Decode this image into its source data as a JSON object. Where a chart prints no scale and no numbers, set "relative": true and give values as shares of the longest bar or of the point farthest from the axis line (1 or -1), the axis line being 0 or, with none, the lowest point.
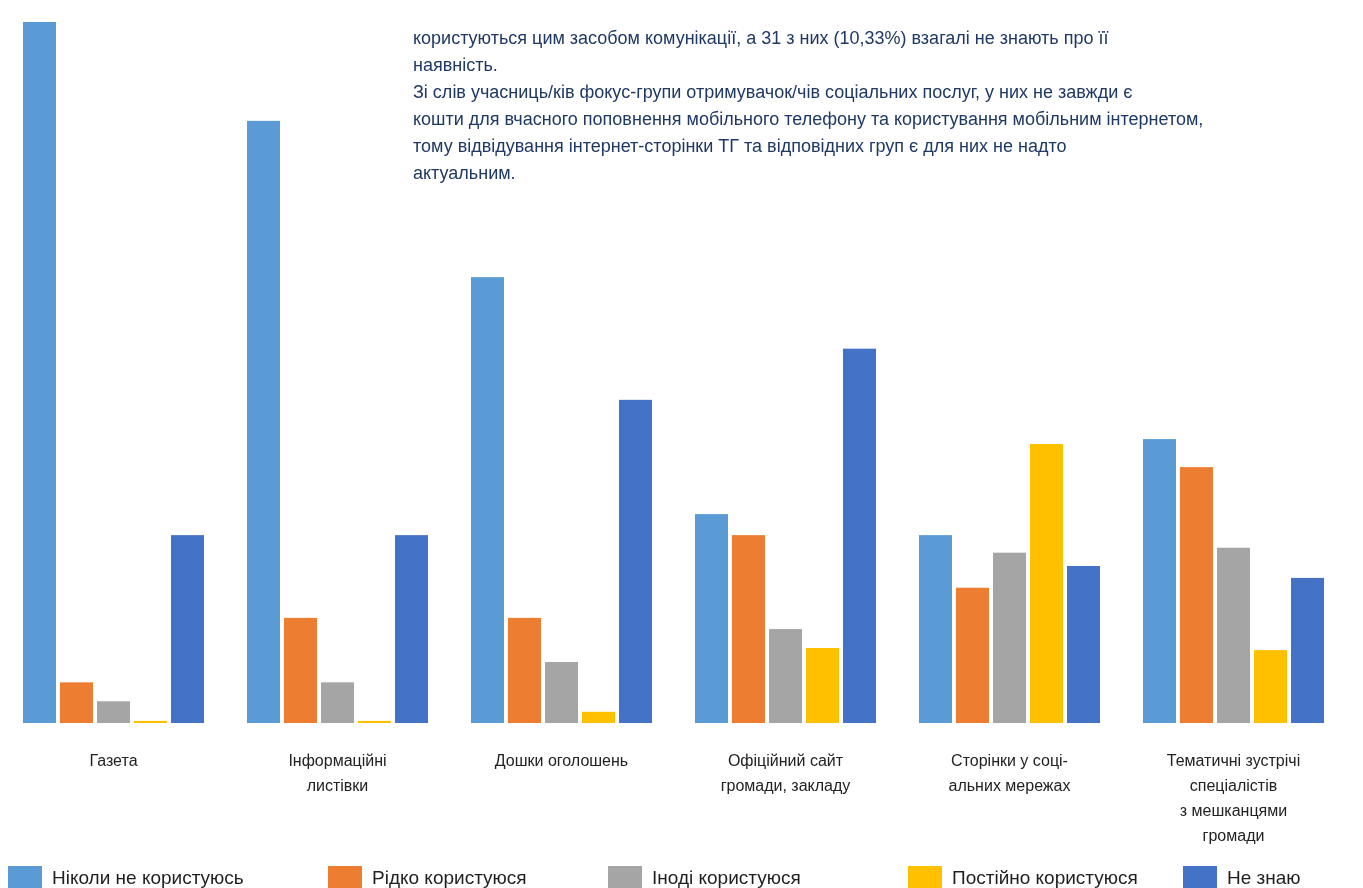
{
  "chart_data": {
    "type": "bar",
    "relative": true,
    "legend": "bottom",
    "categories": [
      "Газета",
      "Інформаційні\nлистівки",
      "Дошки оголошень",
      "Офіційний сайт\nгромади, закладу",
      "Сторінки у соці-\nальних мережах",
      "Тематичні зустрічі\nспеціалістів\nз мешканцями\nгромади"
    ],
    "series": [
      {
        "name": "Ніколи не користуюсь",
        "color": "#5b9bd5",
        "values": [
          1.0,
          0.859,
          0.636,
          0.298,
          0.268,
          0.405
        ]
      },
      {
        "name": "Рідко користуюся",
        "color": "#ed7d31",
        "values": [
          0.058,
          0.15,
          0.15,
          0.268,
          0.193,
          0.365
        ]
      },
      {
        "name": "Іноді користуюся",
        "color": "#a5a5a5",
        "values": [
          0.031,
          0.058,
          0.087,
          0.134,
          0.243,
          0.25
        ]
      },
      {
        "name": "Постійно користуюся",
        "color": "#ffc000",
        "values": [
          0.003,
          0.003,
          0.016,
          0.107,
          0.398,
          0.104
        ]
      },
      {
        "name": "Не знаю",
        "color": "#4472c4",
        "values": [
          0.268,
          0.268,
          0.461,
          0.534,
          0.224,
          0.207
        ]
      }
    ],
    "annotations": [
      "користуються цим засобом комунікації, а 31 з них (10,33%) взагалі не знають про її наявність.",
      "Зі слів учасниць/ків фокус-групи отримувачок/чів соціальних послуг, у них не завжди є кошти для вчасного поповнення мобільного телефону та користування мобільним інтернетом, тому відвідування інтернет-сторінки ТГ та відповідних груп є для них не надто актуальним."
    ]
  }
}
